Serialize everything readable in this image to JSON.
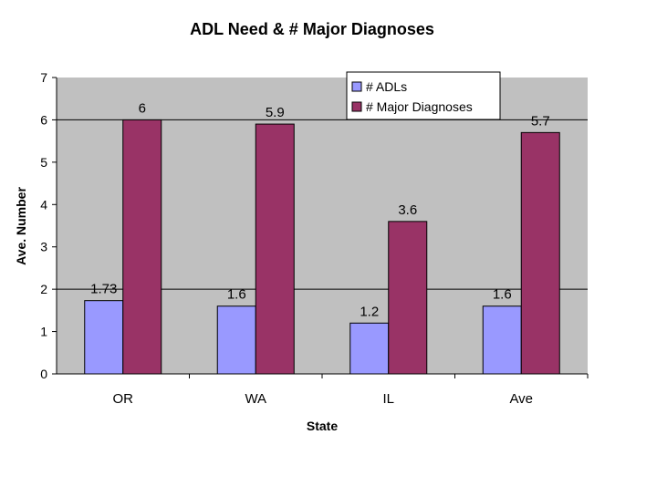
{
  "chart_data": {
    "type": "bar",
    "title": "ADL Need & # Major Diagnoses",
    "xlabel": "State",
    "ylabel": "Ave. Number",
    "categories": [
      "OR",
      "WA",
      "IL",
      "Ave"
    ],
    "series": [
      {
        "name": "# ADLs",
        "values": [
          1.73,
          1.6,
          1.2,
          1.6
        ],
        "labels": [
          "1.73",
          "1.6",
          "1.2",
          "1.6"
        ],
        "color": "#9999ff"
      },
      {
        "name": "# Major Diagnoses",
        "values": [
          6,
          5.9,
          3.6,
          5.7
        ],
        "labels": [
          "6",
          "5.9",
          "3.6",
          "5.7"
        ],
        "color": "#993366"
      }
    ],
    "ylim": [
      0,
      7
    ],
    "yticks": [
      "0",
      "1",
      "2",
      "3",
      "4",
      "5",
      "6",
      "7"
    ],
    "gridlines": [
      2,
      6
    ],
    "plot_background": "#c0c0c0",
    "legend_position": "top-right"
  }
}
